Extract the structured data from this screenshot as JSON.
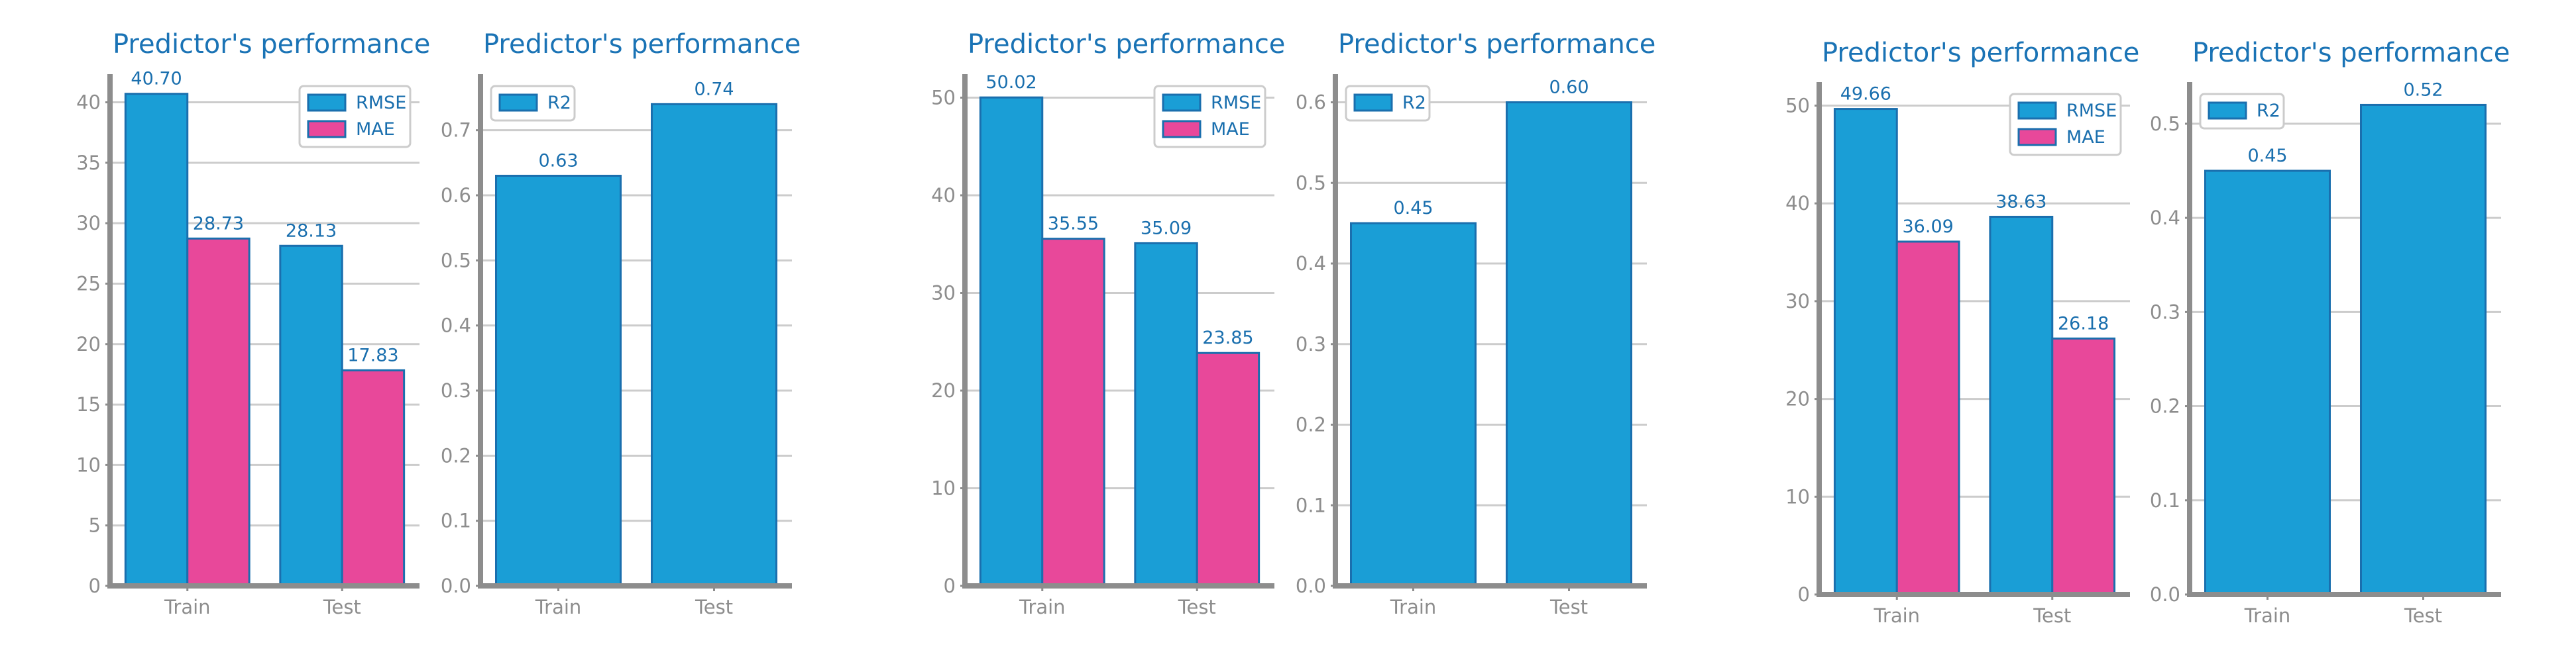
{
  "colors": {
    "primary": "#1a9ed6",
    "secondary": "#e8489a",
    "edge": "#1a6fae",
    "text": "#1a73b5",
    "axis": "#8d8d8d",
    "grid": "#cccccc"
  },
  "chart_data": [
    {
      "type": "bar",
      "title": "Predictor's performance",
      "categories": [
        "Train",
        "Test"
      ],
      "series": [
        {
          "name": "RMSE",
          "values": [
            40.7,
            28.13
          ],
          "labels": [
            "40.70",
            "28.13"
          ]
        },
        {
          "name": "MAE",
          "values": [
            28.73,
            17.83
          ],
          "labels": [
            "28.73",
            "17.83"
          ]
        }
      ],
      "ylim": [
        0,
        42
      ],
      "yticks": [
        0,
        5,
        10,
        15,
        20,
        25,
        30,
        35,
        40
      ],
      "ytick_labels": [
        "0",
        "5",
        "10",
        "15",
        "20",
        "25",
        "30",
        "35",
        "40"
      ],
      "grid": true,
      "legend": "top-right"
    },
    {
      "type": "bar",
      "title": "Predictor's performance",
      "categories": [
        "Train",
        "Test"
      ],
      "series": [
        {
          "name": "R2",
          "values": [
            0.63,
            0.74
          ],
          "labels": [
            "0.63",
            "0.74"
          ]
        }
      ],
      "ylim": [
        0,
        0.78
      ],
      "yticks": [
        0,
        0.1,
        0.2,
        0.3,
        0.4,
        0.5,
        0.6,
        0.7
      ],
      "ytick_labels": [
        "0.0",
        "0.1",
        "0.2",
        "0.3",
        "0.4",
        "0.5",
        "0.6",
        "0.7"
      ],
      "grid": true,
      "legend": "top-left"
    },
    {
      "type": "bar",
      "title": "Predictor's performance",
      "categories": [
        "Train",
        "Test"
      ],
      "series": [
        {
          "name": "RMSE",
          "values": [
            50.02,
            35.09
          ],
          "labels": [
            "50.02",
            "35.09"
          ]
        },
        {
          "name": "MAE",
          "values": [
            35.55,
            23.85
          ],
          "labels": [
            "35.55",
            "23.85"
          ]
        }
      ],
      "ylim": [
        0,
        52
      ],
      "yticks": [
        0,
        10,
        20,
        30,
        40,
        50
      ],
      "ytick_labels": [
        "0",
        "10",
        "20",
        "30",
        "40",
        "50"
      ],
      "grid": true,
      "legend": "top-right"
    },
    {
      "type": "bar",
      "title": "Predictor's performance",
      "categories": [
        "Train",
        "Test"
      ],
      "series": [
        {
          "name": "R2",
          "values": [
            0.45,
            0.6
          ],
          "labels": [
            "0.45",
            "0.60"
          ]
        }
      ],
      "ylim": [
        0,
        0.63
      ],
      "yticks": [
        0,
        0.1,
        0.2,
        0.3,
        0.4,
        0.5,
        0.6
      ],
      "ytick_labels": [
        "0.0",
        "0.1",
        "0.2",
        "0.3",
        "0.4",
        "0.5",
        "0.6"
      ],
      "grid": true,
      "legend": "top-left"
    },
    {
      "type": "bar",
      "title": "Predictor's performance",
      "categories": [
        "Train",
        "Test"
      ],
      "series": [
        {
          "name": "RMSE",
          "values": [
            49.66,
            38.63
          ],
          "labels": [
            "49.66",
            "38.63"
          ]
        },
        {
          "name": "MAE",
          "values": [
            36.09,
            26.18
          ],
          "labels": [
            "36.09",
            "26.18"
          ]
        }
      ],
      "ylim": [
        0,
        52
      ],
      "yticks": [
        0,
        10,
        20,
        30,
        40,
        50
      ],
      "ytick_labels": [
        "0",
        "10",
        "20",
        "30",
        "40",
        "50"
      ],
      "grid": true,
      "legend": "top-right"
    },
    {
      "type": "bar",
      "title": "Predictor's performance",
      "categories": [
        "Train",
        "Test"
      ],
      "series": [
        {
          "name": "R2",
          "values": [
            0.45,
            0.52
          ],
          "labels": [
            "0.45",
            "0.52"
          ]
        }
      ],
      "ylim": [
        0,
        0.54
      ],
      "yticks": [
        0,
        0.1,
        0.2,
        0.3,
        0.4,
        0.5
      ],
      "ytick_labels": [
        "0.0",
        "0.1",
        "0.2",
        "0.3",
        "0.4",
        "0.5"
      ],
      "grid": true,
      "legend": "top-left"
    }
  ]
}
